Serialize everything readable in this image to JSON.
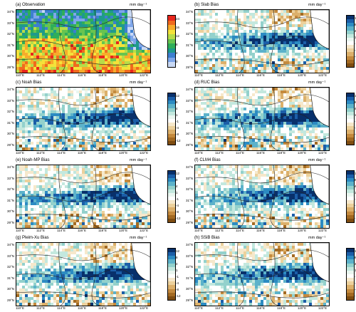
{
  "panels": [
    {
      "id": "a",
      "title": "(a) Observation",
      "unit": "mm day⁻¹",
      "kind": "obs"
    },
    {
      "id": "b",
      "title": "(b) Slab Bias",
      "unit": "mm day⁻¹",
      "kind": "bias"
    },
    {
      "id": "c",
      "title": "(c) Noah Bias",
      "unit": "mm day⁻¹",
      "kind": "bias"
    },
    {
      "id": "d",
      "title": "(d) RUC Bias",
      "unit": "mm day⁻¹",
      "kind": "bias"
    },
    {
      "id": "e",
      "title": "(e) Noah-MP Bias",
      "unit": "mm day⁻¹",
      "kind": "bias"
    },
    {
      "id": "f",
      "title": "(f) CLM4 Bias",
      "unit": "mm day⁻¹",
      "kind": "bias"
    },
    {
      "id": "g",
      "title": "(g) Pleim-Xu Bias",
      "unit": "mm day⁻¹",
      "kind": "bias"
    },
    {
      "id": "h",
      "title": "(h) SSiB Bias",
      "unit": "mm day⁻¹",
      "kind": "bias"
    }
  ],
  "lat_ticks": [
    "34°N",
    "33°N",
    "32°N",
    "31°N",
    "30°N",
    "29°N"
  ],
  "lon_ticks": [
    "110°E",
    "112°E",
    "114°E",
    "116°E",
    "118°E",
    "120°E",
    "122°E"
  ],
  "obs_colorbar": {
    "labels": [
      "24",
      "16",
      "12",
      "8",
      "4",
      "0"
    ],
    "colors": [
      "#e8261c",
      "#f06a1e",
      "#f7ab2b",
      "#f4e23a",
      "#b7dc49",
      "#68c44f",
      "#2fae5a",
      "#1e9a8c",
      "#3d7fd0",
      "#7ea6ea",
      "#c9d9f5"
    ]
  },
  "bias_colorbar": {
    "labels": [
      "12",
      "8",
      "4",
      "1",
      "-1",
      "-4",
      "-8",
      "-12"
    ],
    "colors": [
      "#08306b",
      "#1b5ea8",
      "#2c8bc2",
      "#5cb2ca",
      "#93d1cc",
      "#c3e8de",
      "#eaf6f0",
      "#ffffff",
      "#f6e8cb",
      "#ecd19c",
      "#dcb06b",
      "#c48a3e",
      "#a36a22",
      "#7e4c11"
    ]
  }
}
